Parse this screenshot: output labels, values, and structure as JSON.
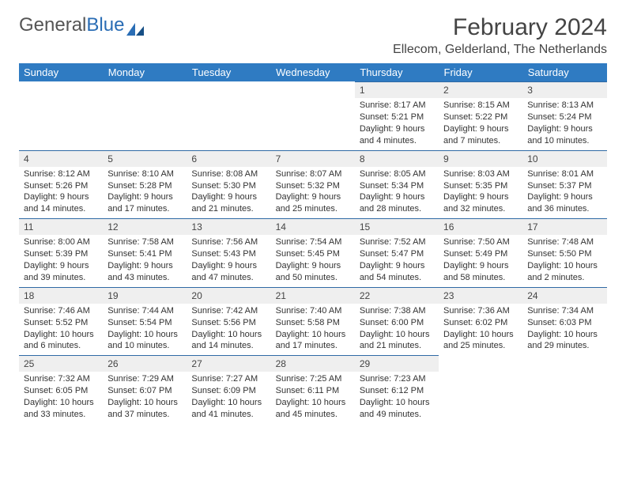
{
  "brand": {
    "part1": "General",
    "part2": "Blue"
  },
  "title": "February 2024",
  "location": "Ellecom, Gelderland, The Netherlands",
  "colors": {
    "header_bg": "#2f7bc2",
    "daynum_bg": "#efefef",
    "rule": "#2f6aa5"
  },
  "day_labels": [
    "Sunday",
    "Monday",
    "Tuesday",
    "Wednesday",
    "Thursday",
    "Friday",
    "Saturday"
  ],
  "weeks": [
    [
      null,
      null,
      null,
      null,
      {
        "n": "1",
        "sr": "Sunrise: 8:17 AM",
        "ss": "Sunset: 5:21 PM",
        "d1": "Daylight: 9 hours",
        "d2": "and 4 minutes."
      },
      {
        "n": "2",
        "sr": "Sunrise: 8:15 AM",
        "ss": "Sunset: 5:22 PM",
        "d1": "Daylight: 9 hours",
        "d2": "and 7 minutes."
      },
      {
        "n": "3",
        "sr": "Sunrise: 8:13 AM",
        "ss": "Sunset: 5:24 PM",
        "d1": "Daylight: 9 hours",
        "d2": "and 10 minutes."
      }
    ],
    [
      {
        "n": "4",
        "sr": "Sunrise: 8:12 AM",
        "ss": "Sunset: 5:26 PM",
        "d1": "Daylight: 9 hours",
        "d2": "and 14 minutes."
      },
      {
        "n": "5",
        "sr": "Sunrise: 8:10 AM",
        "ss": "Sunset: 5:28 PM",
        "d1": "Daylight: 9 hours",
        "d2": "and 17 minutes."
      },
      {
        "n": "6",
        "sr": "Sunrise: 8:08 AM",
        "ss": "Sunset: 5:30 PM",
        "d1": "Daylight: 9 hours",
        "d2": "and 21 minutes."
      },
      {
        "n": "7",
        "sr": "Sunrise: 8:07 AM",
        "ss": "Sunset: 5:32 PM",
        "d1": "Daylight: 9 hours",
        "d2": "and 25 minutes."
      },
      {
        "n": "8",
        "sr": "Sunrise: 8:05 AM",
        "ss": "Sunset: 5:34 PM",
        "d1": "Daylight: 9 hours",
        "d2": "and 28 minutes."
      },
      {
        "n": "9",
        "sr": "Sunrise: 8:03 AM",
        "ss": "Sunset: 5:35 PM",
        "d1": "Daylight: 9 hours",
        "d2": "and 32 minutes."
      },
      {
        "n": "10",
        "sr": "Sunrise: 8:01 AM",
        "ss": "Sunset: 5:37 PM",
        "d1": "Daylight: 9 hours",
        "d2": "and 36 minutes."
      }
    ],
    [
      {
        "n": "11",
        "sr": "Sunrise: 8:00 AM",
        "ss": "Sunset: 5:39 PM",
        "d1": "Daylight: 9 hours",
        "d2": "and 39 minutes."
      },
      {
        "n": "12",
        "sr": "Sunrise: 7:58 AM",
        "ss": "Sunset: 5:41 PM",
        "d1": "Daylight: 9 hours",
        "d2": "and 43 minutes."
      },
      {
        "n": "13",
        "sr": "Sunrise: 7:56 AM",
        "ss": "Sunset: 5:43 PM",
        "d1": "Daylight: 9 hours",
        "d2": "and 47 minutes."
      },
      {
        "n": "14",
        "sr": "Sunrise: 7:54 AM",
        "ss": "Sunset: 5:45 PM",
        "d1": "Daylight: 9 hours",
        "d2": "and 50 minutes."
      },
      {
        "n": "15",
        "sr": "Sunrise: 7:52 AM",
        "ss": "Sunset: 5:47 PM",
        "d1": "Daylight: 9 hours",
        "d2": "and 54 minutes."
      },
      {
        "n": "16",
        "sr": "Sunrise: 7:50 AM",
        "ss": "Sunset: 5:49 PM",
        "d1": "Daylight: 9 hours",
        "d2": "and 58 minutes."
      },
      {
        "n": "17",
        "sr": "Sunrise: 7:48 AM",
        "ss": "Sunset: 5:50 PM",
        "d1": "Daylight: 10 hours",
        "d2": "and 2 minutes."
      }
    ],
    [
      {
        "n": "18",
        "sr": "Sunrise: 7:46 AM",
        "ss": "Sunset: 5:52 PM",
        "d1": "Daylight: 10 hours",
        "d2": "and 6 minutes."
      },
      {
        "n": "19",
        "sr": "Sunrise: 7:44 AM",
        "ss": "Sunset: 5:54 PM",
        "d1": "Daylight: 10 hours",
        "d2": "and 10 minutes."
      },
      {
        "n": "20",
        "sr": "Sunrise: 7:42 AM",
        "ss": "Sunset: 5:56 PM",
        "d1": "Daylight: 10 hours",
        "d2": "and 14 minutes."
      },
      {
        "n": "21",
        "sr": "Sunrise: 7:40 AM",
        "ss": "Sunset: 5:58 PM",
        "d1": "Daylight: 10 hours",
        "d2": "and 17 minutes."
      },
      {
        "n": "22",
        "sr": "Sunrise: 7:38 AM",
        "ss": "Sunset: 6:00 PM",
        "d1": "Daylight: 10 hours",
        "d2": "and 21 minutes."
      },
      {
        "n": "23",
        "sr": "Sunrise: 7:36 AM",
        "ss": "Sunset: 6:02 PM",
        "d1": "Daylight: 10 hours",
        "d2": "and 25 minutes."
      },
      {
        "n": "24",
        "sr": "Sunrise: 7:34 AM",
        "ss": "Sunset: 6:03 PM",
        "d1": "Daylight: 10 hours",
        "d2": "and 29 minutes."
      }
    ],
    [
      {
        "n": "25",
        "sr": "Sunrise: 7:32 AM",
        "ss": "Sunset: 6:05 PM",
        "d1": "Daylight: 10 hours",
        "d2": "and 33 minutes."
      },
      {
        "n": "26",
        "sr": "Sunrise: 7:29 AM",
        "ss": "Sunset: 6:07 PM",
        "d1": "Daylight: 10 hours",
        "d2": "and 37 minutes."
      },
      {
        "n": "27",
        "sr": "Sunrise: 7:27 AM",
        "ss": "Sunset: 6:09 PM",
        "d1": "Daylight: 10 hours",
        "d2": "and 41 minutes."
      },
      {
        "n": "28",
        "sr": "Sunrise: 7:25 AM",
        "ss": "Sunset: 6:11 PM",
        "d1": "Daylight: 10 hours",
        "d2": "and 45 minutes."
      },
      {
        "n": "29",
        "sr": "Sunrise: 7:23 AM",
        "ss": "Sunset: 6:12 PM",
        "d1": "Daylight: 10 hours",
        "d2": "and 49 minutes."
      },
      null,
      null
    ]
  ]
}
